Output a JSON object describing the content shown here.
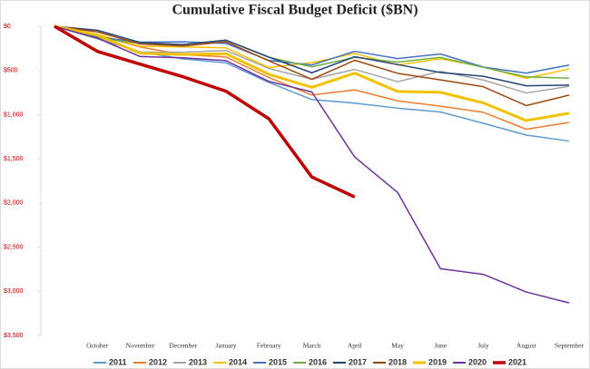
{
  "chart_data": {
    "type": "line",
    "title": "Cumulative Fiscal Budget Deficit ($BN)",
    "categories": [
      null,
      "October",
      "November",
      "December",
      "January",
      "February",
      "March",
      "April",
      "May",
      "June",
      "July",
      "August",
      "September"
    ],
    "ylim": [
      3500,
      0
    ],
    "yticks": [
      {
        "value": 0,
        "label": "$0"
      },
      {
        "value": 500,
        "label": "$500"
      },
      {
        "value": 1000,
        "label": "$1,000"
      },
      {
        "value": 1500,
        "label": "$1,500"
      },
      {
        "value": 2000,
        "label": "$2,000"
      },
      {
        "value": 2500,
        "label": "$2,500"
      },
      {
        "value": 3000,
        "label": "$3,000"
      },
      {
        "value": 3500,
        "label": "$3,500"
      }
    ],
    "grid": false,
    "legend": "bottom",
    "series": [
      {
        "name": "2011",
        "color": "#5b9bd5",
        "line_width": 1.5,
        "values": [
          0,
          140,
          291,
          370,
          413,
          636,
          829,
          870,
          927,
          970,
          1098,
          1232,
          1299
        ]
      },
      {
        "name": "2012",
        "color": "#ed7d31",
        "line_width": 1.5,
        "values": [
          0,
          98,
          235,
          321,
          348,
          580,
          778,
          720,
          844,
          904,
          974,
          1165,
          1089
        ]
      },
      {
        "name": "2013",
        "color": "#a5a5a5",
        "line_width": 1.5,
        "values": [
          0,
          120,
          292,
          293,
          274,
          477,
          600,
          488,
          627,
          510,
          608,
          755,
          680
        ]
      },
      {
        "name": "2014",
        "color": "#ffc000",
        "line_width": 1.5,
        "values": [
          0,
          91,
          226,
          234,
          244,
          466,
          413,
          307,
          437,
          367,
          461,
          589,
          483
        ]
      },
      {
        "name": "2015",
        "color": "#4472c4",
        "line_width": 1.5,
        "values": [
          0,
          122,
          179,
          176,
          194,
          386,
          439,
          283,
          366,
          313,
          462,
          530,
          439
        ]
      },
      {
        "name": "2016",
        "color": "#70ad47",
        "line_width": 1.5,
        "values": [
          0,
          136,
          192,
          206,
          158,
          351,
          459,
          352,
          405,
          352,
          465,
          572,
          587
        ]
      },
      {
        "name": "2017",
        "color": "#264478",
        "line_width": 1.5,
        "values": [
          0,
          45,
          183,
          206,
          157,
          349,
          526,
          344,
          433,
          523,
          566,
          674,
          666
        ]
      },
      {
        "name": "2018",
        "color": "#9e480e",
        "line_width": 1.5,
        "values": [
          0,
          63,
          200,
          223,
          176,
          391,
          600,
          385,
          532,
          607,
          684,
          898,
          779
        ]
      },
      {
        "name": "2019",
        "color": "#f2c200",
        "line_width": 3,
        "values": [
          0,
          100,
          305,
          319,
          310,
          544,
          691,
          531,
          738,
          747,
          867,
          1067,
          984
        ]
      },
      {
        "name": "2020",
        "color": "#7030a0",
        "line_width": 1.5,
        "values": [
          0,
          134,
          343,
          357,
          389,
          624,
          743,
          1480,
          1880,
          2744,
          2808,
          3008,
          3132
        ]
      },
      {
        "name": "2021",
        "color": "#c00000",
        "line_width": 3.5,
        "values": [
          0,
          284,
          429,
          572,
          735,
          1047,
          1706,
          1932,
          null,
          null,
          null,
          null,
          null
        ]
      }
    ]
  }
}
